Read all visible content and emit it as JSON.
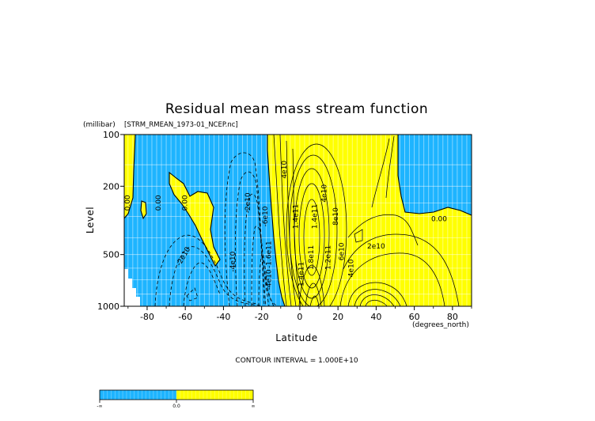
{
  "chart_data": {
    "type": "contour",
    "title": "Residual mean mass stream function",
    "subtitle": "[STRM_RMEAN_1973-01_NCEP.nc]",
    "xlabel": "Latitude",
    "x_units": "(degrees_north)",
    "ylabel": "Level",
    "y_units": "(millibar)",
    "x_range": [
      -92,
      90
    ],
    "y_range": [
      100,
      1000
    ],
    "y_scale": "log",
    "x_ticks": [
      -80,
      -60,
      -40,
      -20,
      0,
      20,
      40,
      60,
      80
    ],
    "y_ticks": [
      100,
      200,
      500,
      1000
    ],
    "contour_interval_text": "CONTOUR INTERVAL = 1.000E+10",
    "colors": {
      "negative": "#1eb4ff",
      "positive": "#ffff00",
      "missing": "#ffffff"
    },
    "colorbar_labels": [
      "-∞",
      "0.0",
      "∞"
    ],
    "contour_labels": [
      {
        "text": "0.00",
        "lat": -89,
        "lev": 250,
        "rot": -90
      },
      {
        "text": "0.00",
        "lat": -73,
        "lev": 250,
        "rot": -90
      },
      {
        "text": "0.00",
        "lat": -59,
        "lev": 250,
        "rot": -90
      },
      {
        "text": "-2e10",
        "lat": -60,
        "lev": 520,
        "rot": -60
      },
      {
        "text": "-4e10",
        "lat": -34,
        "lev": 550,
        "rot": -90
      },
      {
        "text": "-2e10",
        "lat": -26,
        "lev": 250,
        "rot": -90
      },
      {
        "text": "-6e10",
        "lat": -17,
        "lev": 300,
        "rot": -90
      },
      {
        "text": "-1.6e11",
        "lat": -15,
        "lev": 500,
        "rot": -90
      },
      {
        "text": "-4e10",
        "lat": -15,
        "lev": 700,
        "rot": -90
      },
      {
        "text": "4e10",
        "lat": -7,
        "lev": 160,
        "rot": -90
      },
      {
        "text": "1.4e11",
        "lat": -1,
        "lev": 300,
        "rot": -90
      },
      {
        "text": "1.4e11",
        "lat": 2,
        "lev": 650,
        "rot": -90
      },
      {
        "text": "1.8e11",
        "lat": 7,
        "lev": 520,
        "rot": -90
      },
      {
        "text": "1.4e11",
        "lat": 9,
        "lev": 300,
        "rot": -90
      },
      {
        "text": "4e10",
        "lat": 14,
        "lev": 220,
        "rot": -90
      },
      {
        "text": "8e10",
        "lat": 20,
        "lev": 300,
        "rot": -90
      },
      {
        "text": "1.2e11",
        "lat": 16,
        "lev": 520,
        "rot": -90
      },
      {
        "text": "6e10",
        "lat": 23,
        "lev": 480,
        "rot": -90
      },
      {
        "text": "4e10",
        "lat": 28,
        "lev": 600,
        "rot": -90
      },
      {
        "text": "2e10",
        "lat": 40,
        "lev": 460,
        "rot": 0
      },
      {
        "text": "0.00",
        "lat": 73,
        "lev": 320,
        "rot": 0
      }
    ]
  }
}
